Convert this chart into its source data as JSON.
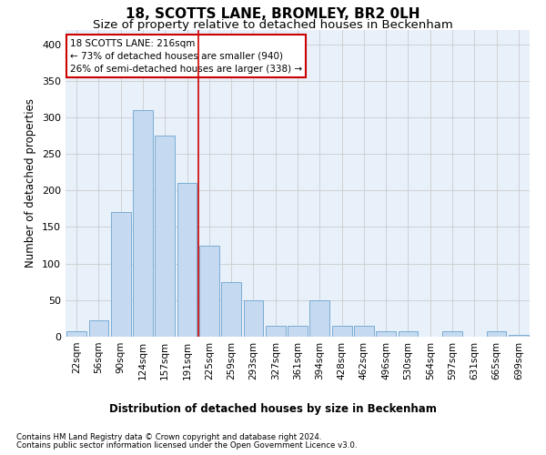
{
  "title": "18, SCOTTS LANE, BROMLEY, BR2 0LH",
  "subtitle": "Size of property relative to detached houses in Beckenham",
  "xlabel": "Distribution of detached houses by size in Beckenham",
  "ylabel": "Number of detached properties",
  "categories": [
    "22sqm",
    "56sqm",
    "90sqm",
    "124sqm",
    "157sqm",
    "191sqm",
    "225sqm",
    "259sqm",
    "293sqm",
    "327sqm",
    "361sqm",
    "394sqm",
    "428sqm",
    "462sqm",
    "496sqm",
    "530sqm",
    "564sqm",
    "597sqm",
    "631sqm",
    "665sqm",
    "699sqm"
  ],
  "values": [
    7,
    22,
    170,
    310,
    275,
    210,
    125,
    75,
    50,
    15,
    15,
    50,
    15,
    15,
    8,
    8,
    0,
    8,
    0,
    8,
    3
  ],
  "bar_color": "#c5d9f0",
  "bar_edge_color": "#7aadd4",
  "vline_color": "#cc0000",
  "annotation_box_color": "#ffffff",
  "annotation_box_edge": "#cc0000",
  "grid_color": "#cccccc",
  "bg_color": "#e8f0fa",
  "marker_label": "18 SCOTTS LANE: 216sqm",
  "pct_smaller": "73% of detached houses are smaller (940)",
  "pct_larger": "26% of semi-detached houses are larger (338)",
  "footnote1": "Contains HM Land Registry data © Crown copyright and database right 2024.",
  "footnote2": "Contains public sector information licensed under the Open Government Licence v3.0.",
  "ylim": [
    0,
    420
  ],
  "vline_x": 5.5
}
